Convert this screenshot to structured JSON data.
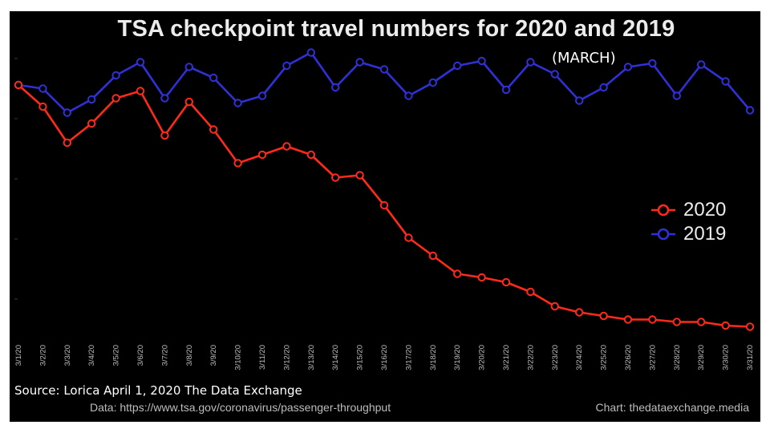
{
  "chart_data": {
    "type": "line",
    "title": "TSA checkpoint travel numbers for 2020 and 2019",
    "subtitle": "(MARCH)",
    "xlabel": "",
    "ylabel": "",
    "ylim": [
      0,
      2.8
    ],
    "categories": [
      "3/1/20",
      "3/2/20",
      "3/3/20",
      "3/4/20",
      "3/5/20",
      "3/6/20",
      "3/7/20",
      "3/8/20",
      "3/9/20",
      "3/10/20",
      "3/11/20",
      "3/12/20",
      "3/13/20",
      "3/14/20",
      "3/15/20",
      "3/16/20",
      "3/17/20",
      "3/18/20",
      "3/19/20",
      "3/20/20",
      "3/21/20",
      "3/22/20",
      "3/23/20",
      "3/24/20",
      "3/25/20",
      "3/26/20",
      "3/27/20",
      "3/28/20",
      "3/29/20",
      "3/30/20",
      "3/31/20"
    ],
    "series": [
      {
        "name": "2020",
        "color": "#ff2a1a",
        "values": [
          2.28,
          2.1,
          1.8,
          1.96,
          2.17,
          2.23,
          1.86,
          2.14,
          1.91,
          1.63,
          1.7,
          1.77,
          1.7,
          1.51,
          1.53,
          1.28,
          1.01,
          0.86,
          0.71,
          0.68,
          0.64,
          0.56,
          0.44,
          0.39,
          0.36,
          0.33,
          0.33,
          0.31,
          0.31,
          0.28,
          0.27
        ]
      },
      {
        "name": "2019",
        "color": "#3030d8",
        "values": [
          2.28,
          2.25,
          2.05,
          2.16,
          2.36,
          2.47,
          2.17,
          2.43,
          2.34,
          2.13,
          2.19,
          2.44,
          2.55,
          2.26,
          2.47,
          2.41,
          2.19,
          2.3,
          2.44,
          2.48,
          2.24,
          2.47,
          2.37,
          2.15,
          2.26,
          2.43,
          2.46,
          2.19,
          2.45,
          2.31,
          2.07
        ]
      }
    ],
    "legend_position": "right"
  },
  "legend": {
    "items": [
      {
        "label": "2020",
        "color": "#ff2a1a"
      },
      {
        "label": "2019",
        "color": "#3030d8"
      }
    ]
  },
  "footer": {
    "source": "Source: Lorica April 1, 2020 The Data Exchange",
    "data_credit": "Data: https://www.tsa.gov/coronavirus/passenger-throughput",
    "chart_credit": "Chart: thedataexchange.media"
  }
}
